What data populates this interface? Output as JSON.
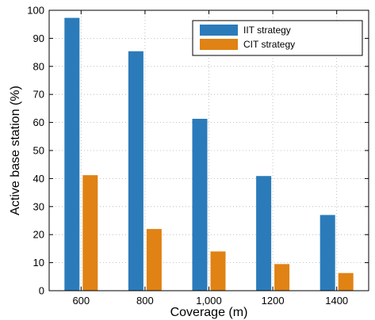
{
  "chart_data": {
    "type": "bar",
    "categories": [
      "600",
      "800",
      "1,000",
      "1200",
      "1400"
    ],
    "series": [
      {
        "name": "IIT strategy",
        "color": "#2b7bba",
        "values": [
          97.3,
          85.4,
          61.3,
          40.9,
          27.0
        ]
      },
      {
        "name": "CIT strategy",
        "color": "#e08214",
        "values": [
          41.2,
          22.0,
          14.0,
          9.5,
          6.3
        ]
      }
    ],
    "xlabel": "Coverage (m)",
    "ylabel": "Active base station (%)",
    "ylim": [
      0,
      100
    ],
    "yticks": [
      0,
      10,
      20,
      30,
      40,
      50,
      60,
      70,
      80,
      90,
      100
    ],
    "grid": true,
    "legend_position": "top-right"
  }
}
